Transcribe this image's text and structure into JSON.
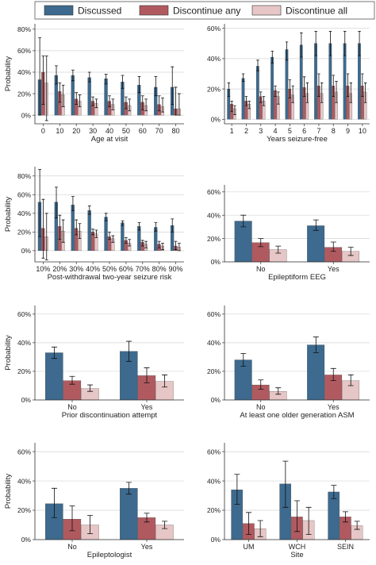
{
  "legend": {
    "placement": "top",
    "entries": [
      {
        "name": "Discussed",
        "color": "#3d6a8e"
      },
      {
        "name": "Discontinue any",
        "color": "#b05a60"
      },
      {
        "name": "Discontinue all",
        "color": "#e6c6c6"
      }
    ]
  },
  "chart_data": [
    {
      "type": "bar",
      "xlabel": "Age at visit",
      "ylabel": "Probability",
      "ylim": [
        -0.08,
        0.85
      ],
      "yticks": [
        0,
        0.2,
        0.4,
        0.6,
        0.8
      ],
      "ytick_labels": [
        "0%",
        "20%",
        "40%",
        "60%",
        "80%"
      ],
      "categories": [
        "0",
        "10",
        "20",
        "30",
        "40",
        "50",
        "60",
        "70",
        "80"
      ],
      "series": [
        {
          "name": "Discussed",
          "values": [
            0.33,
            0.37,
            0.37,
            0.35,
            0.34,
            0.31,
            0.28,
            0.26,
            0.26
          ],
          "err_low": [
            0.0,
            0.29,
            0.32,
            0.31,
            0.29,
            0.25,
            0.21,
            0.18,
            0.1
          ],
          "err_high": [
            0.72,
            0.46,
            0.42,
            0.4,
            0.38,
            0.37,
            0.36,
            0.36,
            0.45
          ]
        },
        {
          "name": "Discontinue any",
          "values": [
            0.4,
            0.22,
            0.15,
            0.13,
            0.13,
            0.12,
            0.12,
            0.1,
            0.06
          ],
          "err_low": [
            0.1,
            0.12,
            0.1,
            0.09,
            0.08,
            0.06,
            0.05,
            0.04,
            0.0
          ],
          "err_high": [
            0.55,
            0.3,
            0.21,
            0.17,
            0.18,
            0.17,
            0.18,
            0.18,
            0.26
          ]
        },
        {
          "name": "Discontinue all",
          "values": [
            0.3,
            0.19,
            0.13,
            0.11,
            0.1,
            0.09,
            0.09,
            0.08,
            0.06
          ],
          "err_low": [
            -0.05,
            0.08,
            0.08,
            0.07,
            0.05,
            0.04,
            0.04,
            0.03,
            0.0
          ],
          "err_high": [
            0.55,
            0.28,
            0.19,
            0.15,
            0.15,
            0.15,
            0.15,
            0.16,
            0.2
          ]
        }
      ]
    },
    {
      "type": "bar",
      "xlabel": "Years seizure-free",
      "ylabel": "",
      "ylim": [
        -0.03,
        0.63
      ],
      "yticks": [
        0,
        0.2,
        0.4,
        0.6
      ],
      "ytick_labels": [
        "0%",
        "20%",
        "40%",
        "60%"
      ],
      "categories": [
        "1",
        "2",
        "3",
        "4",
        "5",
        "6",
        "7",
        "8",
        "9",
        "10"
      ],
      "series": [
        {
          "name": "Discussed",
          "values": [
            0.2,
            0.27,
            0.35,
            0.41,
            0.46,
            0.49,
            0.5,
            0.5,
            0.5,
            0.5
          ],
          "err_low": [
            0.15,
            0.25,
            0.32,
            0.37,
            0.39,
            0.41,
            0.42,
            0.42,
            0.42,
            0.42
          ],
          "err_high": [
            0.24,
            0.3,
            0.39,
            0.45,
            0.51,
            0.57,
            0.58,
            0.58,
            0.58,
            0.58
          ]
        },
        {
          "name": "Discontinue any",
          "values": [
            0.1,
            0.12,
            0.15,
            0.19,
            0.2,
            0.21,
            0.22,
            0.22,
            0.22,
            0.22
          ],
          "err_low": [
            0.05,
            0.09,
            0.11,
            0.15,
            0.14,
            0.15,
            0.15,
            0.15,
            0.15,
            0.15
          ],
          "err_high": [
            0.12,
            0.15,
            0.18,
            0.22,
            0.26,
            0.28,
            0.3,
            0.29,
            0.3,
            0.3
          ]
        },
        {
          "name": "Discontinue all",
          "values": [
            0.07,
            0.1,
            0.12,
            0.15,
            0.16,
            0.17,
            0.17,
            0.18,
            0.17,
            0.18
          ],
          "err_low": [
            0.03,
            0.07,
            0.09,
            0.1,
            0.11,
            0.11,
            0.11,
            0.11,
            0.11,
            0.11
          ],
          "err_high": [
            0.09,
            0.12,
            0.15,
            0.18,
            0.22,
            0.24,
            0.24,
            0.25,
            0.24,
            0.24
          ]
        }
      ]
    },
    {
      "type": "bar",
      "xlabel": "Post-withdrawal two-year seizure risk",
      "ylabel": "Probability",
      "ylim": [
        -0.12,
        0.9
      ],
      "yticks": [
        0,
        0.2,
        0.4,
        0.6,
        0.8
      ],
      "ytick_labels": [
        "0%",
        "20%",
        "40%",
        "60%",
        "80%"
      ],
      "categories": [
        "10%",
        "20%",
        "30%",
        "40%",
        "50%",
        "60%",
        "70%",
        "80%",
        "90%"
      ],
      "series": [
        {
          "name": "Discussed",
          "values": [
            0.52,
            0.52,
            0.49,
            0.43,
            0.36,
            0.3,
            0.26,
            0.25,
            0.27
          ],
          "err_low": [
            0.15,
            0.35,
            0.43,
            0.39,
            0.32,
            0.27,
            0.22,
            0.21,
            0.2
          ],
          "err_high": [
            0.87,
            0.68,
            0.58,
            0.48,
            0.4,
            0.32,
            0.3,
            0.3,
            0.34
          ]
        },
        {
          "name": "Discontinue any",
          "values": [
            0.24,
            0.26,
            0.24,
            0.2,
            0.15,
            0.11,
            0.09,
            0.07,
            0.05
          ],
          "err_low": [
            -0.08,
            0.12,
            0.17,
            0.17,
            0.12,
            0.08,
            0.05,
            0.03,
            0.01
          ],
          "err_high": [
            0.55,
            0.38,
            0.33,
            0.23,
            0.2,
            0.14,
            0.11,
            0.1,
            0.1
          ]
        },
        {
          "name": "Discontinue all",
          "values": [
            0.15,
            0.21,
            0.21,
            0.18,
            0.13,
            0.08,
            0.07,
            0.05,
            0.04
          ],
          "err_low": [
            -0.1,
            0.09,
            0.13,
            0.14,
            0.09,
            0.05,
            0.03,
            0.01,
            0.0
          ],
          "err_high": [
            0.4,
            0.33,
            0.29,
            0.22,
            0.16,
            0.12,
            0.1,
            0.08,
            0.08
          ]
        }
      ]
    },
    {
      "type": "bar",
      "xlabel": "Epileptiform EEG",
      "ylabel": "",
      "ylim": [
        0,
        0.66
      ],
      "yticks": [
        0,
        0.2,
        0.4,
        0.6
      ],
      "ytick_labels": [
        "0%",
        "20%",
        "40%",
        "60%"
      ],
      "categories": [
        "No",
        "Yes"
      ],
      "series": [
        {
          "name": "Discussed",
          "values": [
            0.35,
            0.31
          ],
          "err_low": [
            0.3,
            0.27
          ],
          "err_high": [
            0.4,
            0.36
          ]
        },
        {
          "name": "Discontinue any",
          "values": [
            0.165,
            0.125
          ],
          "err_low": [
            0.13,
            0.09
          ],
          "err_high": [
            0.2,
            0.17
          ]
        },
        {
          "name": "Discontinue all",
          "values": [
            0.105,
            0.09
          ],
          "err_low": [
            0.075,
            0.055
          ],
          "err_high": [
            0.135,
            0.125
          ]
        }
      ]
    },
    {
      "type": "bar",
      "xlabel": "Prior discontinuation attempt",
      "ylabel": "Probability",
      "ylim": [
        0,
        0.66
      ],
      "yticks": [
        0,
        0.2,
        0.4,
        0.6
      ],
      "ytick_labels": [
        "0%",
        "20%",
        "40%",
        "60%"
      ],
      "categories": [
        "No",
        "Yes"
      ],
      "series": [
        {
          "name": "Discussed",
          "values": [
            0.33,
            0.34
          ],
          "err_low": [
            0.29,
            0.27
          ],
          "err_high": [
            0.37,
            0.41
          ]
        },
        {
          "name": "Discontinue any",
          "values": [
            0.135,
            0.17
          ],
          "err_low": [
            0.11,
            0.12
          ],
          "err_high": [
            0.165,
            0.225
          ]
        },
        {
          "name": "Discontinue all",
          "values": [
            0.08,
            0.13
          ],
          "err_low": [
            0.06,
            0.09
          ],
          "err_high": [
            0.105,
            0.175
          ]
        }
      ]
    },
    {
      "type": "bar",
      "xlabel": "At least one older generation ASM",
      "ylabel": "",
      "ylim": [
        0,
        0.66
      ],
      "yticks": [
        0,
        0.2,
        0.4,
        0.6
      ],
      "ytick_labels": [
        "0%",
        "20%",
        "40%",
        "60%"
      ],
      "categories": [
        "No",
        "Yes"
      ],
      "series": [
        {
          "name": "Discussed",
          "values": [
            0.28,
            0.385
          ],
          "err_low": [
            0.235,
            0.33
          ],
          "err_high": [
            0.325,
            0.44
          ]
        },
        {
          "name": "Discontinue any",
          "values": [
            0.105,
            0.175
          ],
          "err_low": [
            0.075,
            0.135
          ],
          "err_high": [
            0.14,
            0.22
          ]
        },
        {
          "name": "Discontinue all",
          "values": [
            0.06,
            0.135
          ],
          "err_low": [
            0.04,
            0.1
          ],
          "err_high": [
            0.085,
            0.175
          ]
        }
      ]
    },
    {
      "type": "bar",
      "xlabel": "Epileptologist",
      "ylabel": "Probability",
      "ylim": [
        0,
        0.66
      ],
      "yticks": [
        0,
        0.2,
        0.4,
        0.6
      ],
      "ytick_labels": [
        "0%",
        "20%",
        "40%",
        "60%"
      ],
      "categories": [
        "No",
        "Yes"
      ],
      "series": [
        {
          "name": "Discussed",
          "values": [
            0.245,
            0.35
          ],
          "err_low": [
            0.15,
            0.31
          ],
          "err_high": [
            0.35,
            0.39
          ]
        },
        {
          "name": "Discontinue any",
          "values": [
            0.14,
            0.15
          ],
          "err_low": [
            0.06,
            0.12
          ],
          "err_high": [
            0.23,
            0.18
          ]
        },
        {
          "name": "Discontinue all",
          "values": [
            0.1,
            0.1
          ],
          "err_low": [
            0.04,
            0.075
          ],
          "err_high": [
            0.165,
            0.125
          ]
        }
      ]
    },
    {
      "type": "bar",
      "xlabel": "Site",
      "ylabel": "",
      "ylim": [
        0,
        0.66
      ],
      "yticks": [
        0,
        0.2,
        0.4,
        0.6
      ],
      "ytick_labels": [
        "0%",
        "20%",
        "40%",
        "60%"
      ],
      "categories": [
        "UM",
        "WCH",
        "SEIN"
      ],
      "series": [
        {
          "name": "Discussed",
          "values": [
            0.34,
            0.38,
            0.325
          ],
          "err_low": [
            0.24,
            0.22,
            0.28
          ],
          "err_high": [
            0.445,
            0.535,
            0.37
          ]
        },
        {
          "name": "Discontinue any",
          "values": [
            0.11,
            0.155,
            0.155
          ],
          "err_low": [
            0.035,
            0.055,
            0.12
          ],
          "err_high": [
            0.185,
            0.265,
            0.19
          ]
        },
        {
          "name": "Discontinue all",
          "values": [
            0.075,
            0.13,
            0.095
          ],
          "err_low": [
            0.02,
            0.035,
            0.07
          ],
          "err_high": [
            0.13,
            0.22,
            0.125
          ]
        }
      ]
    }
  ]
}
